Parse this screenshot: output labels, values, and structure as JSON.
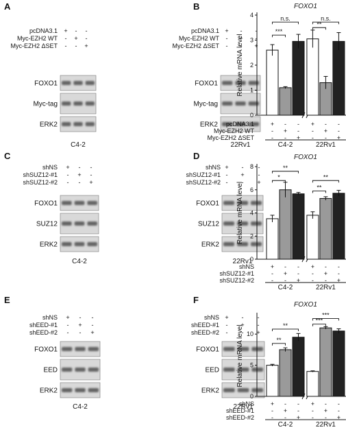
{
  "panels": {
    "A": {
      "letter": "A",
      "blots": [
        {
          "cell_line": "C4-2",
          "conditions": [
            {
              "label": "pcDNA3.1",
              "signs": [
                "+",
                "-",
                "-"
              ]
            },
            {
              "label": "Myc-EZH2 WT",
              "signs": [
                "-",
                "+",
                "-"
              ]
            },
            {
              "label": "Myc-EZH2 ΔSET",
              "signs": [
                "-",
                "-",
                "+"
              ]
            }
          ],
          "rows": [
            "FOXO1",
            "Myc-tag",
            "ERK2"
          ]
        },
        {
          "cell_line": "22Rv1",
          "conditions": [
            {
              "label": "pcDNA3.1",
              "signs": [
                "+",
                "-",
                "-"
              ]
            },
            {
              "label": "Myc-EZH2 WT",
              "signs": [
                "-",
                "+",
                "-"
              ]
            },
            {
              "label": "Myc-EZH2 ΔSET",
              "signs": [
                "-",
                "-",
                "+"
              ]
            }
          ],
          "rows": [
            "FOXO1",
            "Myc-tag",
            "ERK2"
          ]
        }
      ]
    },
    "C": {
      "letter": "C",
      "blots": [
        {
          "cell_line": "C4-2",
          "conditions": [
            {
              "label": "shNS",
              "signs": [
                "+",
                "-",
                "-"
              ]
            },
            {
              "label": "shSUZ12-#1",
              "signs": [
                "-",
                "+",
                "-"
              ]
            },
            {
              "label": "shSUZ12-#2",
              "signs": [
                "-",
                "-",
                "+"
              ]
            }
          ],
          "rows": [
            "FOXO1",
            "SUZ12",
            "ERK2"
          ]
        },
        {
          "cell_line": "22Rv1",
          "conditions": [
            {
              "label": "shNS",
              "signs": [
                "+",
                "-",
                "-"
              ]
            },
            {
              "label": "shSUZ12-#1",
              "signs": [
                "-",
                "+",
                "-"
              ]
            },
            {
              "label": "shSUZ12-#2",
              "signs": [
                "-",
                "-",
                "+"
              ]
            }
          ],
          "rows": [
            "FOXO1",
            "SUZ12",
            "ERK2"
          ]
        }
      ]
    },
    "E": {
      "letter": "E",
      "blots": [
        {
          "cell_line": "C4-2",
          "conditions": [
            {
              "label": "shNS",
              "signs": [
                "+",
                "-",
                "-"
              ]
            },
            {
              "label": "shEED-#1",
              "signs": [
                "-",
                "+",
                "-"
              ]
            },
            {
              "label": "shEED-#2",
              "signs": [
                "-",
                "-",
                "+"
              ]
            }
          ],
          "rows": [
            "FOXO1",
            "EED",
            "ERK2"
          ]
        },
        {
          "cell_line": "22Rv1",
          "conditions": [
            {
              "label": "shNS",
              "signs": [
                "+",
                "-",
                "-"
              ]
            },
            {
              "label": "shEED-#1",
              "signs": [
                "-",
                "+",
                "-"
              ]
            },
            {
              "label": "shEED-#2",
              "signs": [
                "-",
                "-",
                "+"
              ]
            }
          ],
          "rows": [
            "FOXO1",
            "EED",
            "ERK2"
          ]
        }
      ]
    }
  },
  "chart_data": [
    {
      "panel": "B",
      "type": "bar",
      "title": "FOXO1",
      "ylabel": "Relative mRNA level",
      "ylim": [
        0,
        4
      ],
      "yticks": [
        "0",
        "1",
        "2",
        "3",
        "4"
      ],
      "groups": [
        "C4-2",
        "22Rv1"
      ],
      "conditions": [
        {
          "label": "pcDNA3.1",
          "signs": [
            "+",
            "-",
            "-",
            "+",
            "-",
            "-"
          ]
        },
        {
          "label": "Myc-EZH2 WT",
          "signs": [
            "-",
            "+",
            "-",
            "-",
            "+",
            "-"
          ]
        },
        {
          "label": "Myc-EZH2 ΔSET",
          "signs": [
            "-",
            "-",
            "+",
            "-",
            "-",
            "+"
          ]
        }
      ],
      "values": [
        2.6,
        1.1,
        2.95,
        3.05,
        1.3,
        2.95
      ],
      "errors": [
        0.22,
        0.04,
        0.28,
        0.35,
        0.25,
        0.35
      ],
      "colors": [
        "#ffffff",
        "#9a9a9a",
        "#222222",
        "#ffffff",
        "#9a9a9a",
        "#222222"
      ],
      "significance": [
        {
          "from": 0,
          "to": 1,
          "label": "***",
          "level": 3.2
        },
        {
          "from": 0,
          "to": 2,
          "label": "n.s.",
          "level": 3.72
        },
        {
          "from": 3,
          "to": 4,
          "label": "**",
          "level": 3.5
        },
        {
          "from": 3,
          "to": 5,
          "label": "n.s.",
          "level": 3.72
        }
      ]
    },
    {
      "panel": "D",
      "type": "bar",
      "title": "FOXO1",
      "ylabel": "Relative mRNA level",
      "ylim": [
        0,
        8
      ],
      "yticks": [
        "0",
        "2",
        "4",
        "6",
        "8"
      ],
      "groups": [
        "C4-2",
        "22Rv1"
      ],
      "conditions": [
        {
          "label": "shNS",
          "signs": [
            "+",
            "-",
            "-",
            "+",
            "-",
            "-"
          ]
        },
        {
          "label": "shSUZ12-#1",
          "signs": [
            "-",
            "+",
            "-",
            "-",
            "+",
            "-"
          ]
        },
        {
          "label": "shSUZ12-#2",
          "signs": [
            "-",
            "-",
            "+",
            "-",
            "-",
            "+"
          ]
        }
      ],
      "values": [
        3.5,
        6.0,
        5.65,
        3.8,
        5.25,
        5.7
      ],
      "errors": [
        0.3,
        0.65,
        0.12,
        0.3,
        0.15,
        0.25
      ],
      "colors": [
        "#ffffff",
        "#9a9a9a",
        "#222222",
        "#ffffff",
        "#9a9a9a",
        "#222222"
      ],
      "significance": [
        {
          "from": 0,
          "to": 1,
          "label": "*",
          "level": 6.8
        },
        {
          "from": 0,
          "to": 2,
          "label": "**",
          "level": 7.6
        },
        {
          "from": 3,
          "to": 4,
          "label": "**",
          "level": 5.9
        },
        {
          "from": 3,
          "to": 5,
          "label": "**",
          "level": 6.8
        }
      ]
    },
    {
      "panel": "F",
      "type": "bar",
      "title": "FOXO1",
      "ylabel": "Relative mRNA level",
      "ylim": [
        0,
        13
      ],
      "yticks": [
        "0",
        "5",
        "10"
      ],
      "groups": [
        "C4-2",
        "22Rv1"
      ],
      "conditions": [
        {
          "label": "shNS",
          "signs": [
            "+",
            "-",
            "-",
            "+",
            "-",
            "-"
          ]
        },
        {
          "label": "shEED-#1",
          "signs": [
            "-",
            "+",
            "-",
            "-",
            "+",
            "-"
          ]
        },
        {
          "label": "shEED-#2",
          "signs": [
            "-",
            "-",
            "+",
            "-",
            "-",
            "+"
          ]
        }
      ],
      "values": [
        5.0,
        7.5,
        9.5,
        4.0,
        11.0,
        10.5
      ],
      "errors": [
        0.15,
        0.3,
        0.6,
        0.1,
        0.2,
        0.35
      ],
      "colors": [
        "#ffffff",
        "#9a9a9a",
        "#222222",
        "#ffffff",
        "#9a9a9a",
        "#222222"
      ],
      "significance": [
        {
          "from": 0,
          "to": 1,
          "label": "**",
          "level": 8.5
        },
        {
          "from": 0,
          "to": 2,
          "label": "**",
          "level": 10.8
        },
        {
          "from": 3,
          "to": 4,
          "label": "***",
          "level": 11.6
        },
        {
          "from": 3,
          "to": 5,
          "label": "***",
          "level": 12.5
        }
      ]
    }
  ]
}
